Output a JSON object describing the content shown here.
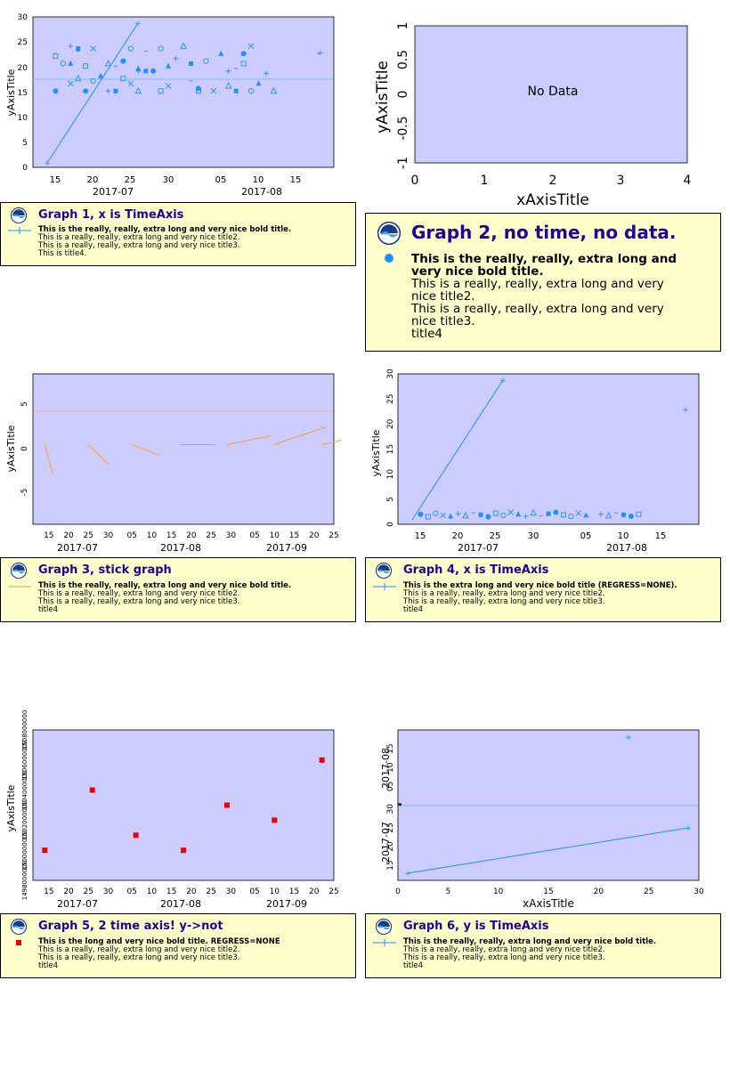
{
  "colors": {
    "plot_bg": "#ccccff",
    "legend_bg": "#ffffcc",
    "series_blue": "#1e90ff",
    "stick_orange": "#ff9933",
    "red": "#ee0000",
    "title_color": "#22009b"
  },
  "graphs": [
    {
      "title": "Graph 1, x is TimeAxis",
      "lines": [
        "This is the really, really, extra long and very nice bold title.",
        "This is a really, really, extra long and very nice title2.",
        "This is a really, really, extra long and very nice title3.",
        "This is title4."
      ],
      "y_axis_title": "yAxisTitle",
      "x_day_ticks": [
        "15",
        "20",
        "25",
        "30",
        "05",
        "10",
        "15"
      ],
      "x_month_labels": [
        "2017-07",
        "2017-08"
      ],
      "y_ticks": [
        "0",
        "5",
        "10",
        "15",
        "20",
        "25",
        "30"
      ]
    },
    {
      "title": "Graph 2, no time, no data.",
      "lines": [
        "This is the really, really, extra long and very nice bold title.",
        "This is a really, really, extra long and very nice title2.",
        "This is a really, really, extra long and very nice title3.",
        "title4"
      ],
      "no_data": "No Data",
      "x_axis_title": "xAxisTitle",
      "y_axis_title": "yAxisTitle",
      "x_ticks": [
        "0",
        "1",
        "2",
        "3",
        "4"
      ],
      "y_ticks": [
        "-1",
        "-0.5",
        "0",
        "0.5",
        "1"
      ]
    },
    {
      "title": "Graph 3, stick graph",
      "lines": [
        "This is the really, really, extra long and very nice bold title.",
        "This is a really, really, extra long and very nice title2.",
        "This is a really, really, extra long and very nice title3.",
        "title4"
      ],
      "y_axis_title": "yAxisTitle",
      "x_day_ticks": [
        "15",
        "20",
        "25",
        "30",
        "05",
        "10",
        "15",
        "20",
        "25",
        "30",
        "05",
        "10",
        "15",
        "20",
        "25"
      ],
      "x_month_labels": [
        "2017-07",
        "2017-08",
        "2017-09"
      ],
      "y_ticks": [
        "-5",
        "0",
        "5"
      ]
    },
    {
      "title": "Graph 4, x is TimeAxis",
      "lines": [
        "This is the  extra long and very nice bold title (REGRESS=NONE).",
        "This is a really, really, extra long and very nice title2.",
        "This is a really, really, extra long and very nice title3.",
        "title4"
      ],
      "y_axis_title": "yAxisTitle",
      "x_day_ticks": [
        "15",
        "20",
        "25",
        "30",
        "05",
        "10",
        "15"
      ],
      "x_month_labels": [
        "2017-07",
        "2017-08"
      ],
      "y_ticks": [
        "0",
        "5",
        "10",
        "15",
        "20",
        "25",
        "30"
      ]
    },
    {
      "title": "Graph 5, 2 time axis! y->not",
      "lines": [
        "This is the long and very nice bold title.  REGRESS=NONE",
        "This is a really, really, extra long and very nice title2.",
        "This is a really, really, extra long and very nice title3.",
        "title4"
      ],
      "y_axis_title": "yAxisTitle",
      "x_day_ticks": [
        "15",
        "20",
        "25",
        "30",
        "05",
        "10",
        "15",
        "20",
        "25",
        "30",
        "05",
        "10",
        "15",
        "20",
        "25"
      ],
      "x_month_labels": [
        "2017-07",
        "2017-08",
        "2017-09"
      ],
      "y_ticks": [
        "1498000000",
        "1500000000",
        "1502000000",
        "1504000000",
        "1506000000",
        "1508000000"
      ]
    },
    {
      "title": "Graph 6, y is TimeAxis",
      "lines": [
        "This is the really, really, extra long and very nice bold title.",
        "This is a really, really, extra long and very nice title2.",
        "This is a really, really, extra long and very nice title3.",
        "title4"
      ],
      "x_axis_title": "xAxisTitle",
      "x_ticks": [
        "0",
        "5",
        "10",
        "15",
        "20",
        "25",
        "30"
      ],
      "y_day_ticks": [
        "15",
        "20",
        "25",
        "30",
        "05",
        "10",
        "15"
      ],
      "y_month_labels": [
        "2017-07",
        "2017-08"
      ]
    }
  ],
  "chart_data": [
    {
      "type": "scatter",
      "title": "Graph 1, x is TimeAxis",
      "ylabel": "yAxisTitle",
      "xlabel": "",
      "xlim": [
        "2017-07-11",
        "2017-08-20"
      ],
      "ylim": [
        0,
        30
      ],
      "line": {
        "x": [
          "2017-07-14",
          "2017-07-26"
        ],
        "y": [
          1,
          29
        ]
      },
      "mean_line": 17.8,
      "scatter_x": [
        "2017-07-14",
        "2017-07-14",
        "2017-07-15",
        "2017-07-16",
        "2017-07-16",
        "2017-07-16",
        "2017-07-17",
        "2017-07-17",
        "2017-07-17",
        "2017-07-18",
        "2017-07-18",
        "2017-07-19",
        "2017-07-19",
        "2017-07-20",
        "2017-07-21",
        "2017-07-21",
        "2017-07-22",
        "2017-07-22",
        "2017-07-23",
        "2017-07-23",
        "2017-07-24",
        "2017-07-24",
        "2017-07-25",
        "2017-07-25",
        "2017-07-25",
        "2017-07-26",
        "2017-07-26",
        "2017-07-27",
        "2017-07-28",
        "2017-07-28",
        "2017-07-29",
        "2017-07-29",
        "2017-07-30",
        "2017-07-31",
        "2017-08-01",
        "2017-08-01",
        "2017-08-02",
        "2017-08-02",
        "2017-08-03",
        "2017-08-04",
        "2017-08-05",
        "2017-08-06",
        "2017-08-06",
        "2017-08-07",
        "2017-08-07",
        "2017-08-08",
        "2017-08-08",
        "2017-08-09",
        "2017-08-09",
        "2017-08-10",
        "2017-08-11",
        "2017-08-12",
        "2017-08-18"
      ],
      "scatter_y": [
        15.5,
        22.5,
        21,
        17,
        21,
        24.5,
        18,
        23.5,
        24,
        15.5,
        20.5,
        17.5,
        24,
        18.5,
        15.5,
        21,
        20.5,
        15.5,
        21.5,
        18,
        24,
        17,
        20,
        19.5,
        15.5,
        23.5,
        19.5,
        19.5,
        15.5,
        24,
        16.5,
        20.5,
        22,
        24.5,
        17.5,
        21,
        16,
        15.5,
        21.5,
        15.5,
        23,
        19.5,
        16.5,
        20,
        15.5,
        23,
        21,
        15.5,
        24.5,
        17,
        19,
        15.5,
        23
      ]
    },
    {
      "type": "scatter",
      "title": "Graph 2, no time, no data.",
      "xlabel": "xAxisTitle",
      "ylabel": "yAxisTitle",
      "xlim": [
        0,
        4
      ],
      "ylim": [
        -1,
        1
      ],
      "values": []
    },
    {
      "type": "line",
      "title": "Graph 3, stick graph",
      "ylabel": "yAxisTitle",
      "xlabel": "",
      "xlim": [
        "2017-07-11",
        "2017-09-25"
      ],
      "ylim": [
        -9,
        8
      ],
      "mean_line": 4.2,
      "sticks": [
        {
          "x": "2017-07-14",
          "dx_days": 2,
          "y0": 0,
          "y1": -3.3
        },
        {
          "x": "2017-07-25",
          "dx_days": 5,
          "y0": 0,
          "y1": -2.2
        },
        {
          "x": "2017-08-05",
          "dx_days": 7,
          "y0": 0,
          "y1": -1.2
        },
        {
          "x": "2017-08-17",
          "dx_days": 9,
          "y0": 0,
          "y1": 0
        },
        {
          "x": "2017-08-29",
          "dx_days": 11,
          "y0": 0,
          "y1": 1
        },
        {
          "x": "2017-09-10",
          "dx_days": 13,
          "y0": 0,
          "y1": 2
        },
        {
          "x": "2017-09-22",
          "dx_days": 5,
          "y0": 0,
          "y1": 0.5
        }
      ]
    },
    {
      "type": "scatter",
      "title": "Graph 4, x is TimeAxis",
      "ylabel": "yAxisTitle",
      "xlabel": "",
      "xlim": [
        "2017-07-11",
        "2017-08-20"
      ],
      "ylim": [
        0,
        30
      ],
      "line": {
        "x": [
          "2017-07-14",
          "2017-07-26"
        ],
        "y": [
          1,
          29
        ]
      },
      "outlier": {
        "x": "2017-08-18",
        "y": 23
      },
      "scatter_x": [
        "2017-07-14",
        "2017-07-15",
        "2017-07-16",
        "2017-07-17",
        "2017-07-18",
        "2017-07-19",
        "2017-07-20",
        "2017-07-21",
        "2017-07-22",
        "2017-07-23",
        "2017-07-24",
        "2017-07-25",
        "2017-07-26",
        "2017-07-27",
        "2017-07-28",
        "2017-07-29",
        "2017-07-30",
        "2017-07-31",
        "2017-08-01",
        "2017-08-02",
        "2017-08-03",
        "2017-08-04",
        "2017-08-05",
        "2017-08-07",
        "2017-08-08",
        "2017-08-09",
        "2017-08-10",
        "2017-08-11",
        "2017-08-12"
      ],
      "scatter_y": [
        2,
        1.5,
        2.2,
        1.8,
        1.6,
        2.1,
        1.7,
        2.3,
        1.9,
        1.5,
        2.2,
        1.8,
        2.4,
        2,
        1.6,
        2.3,
        1.7,
        2.1,
        2.4,
        1.9,
        1.6,
        2.2,
        1.8,
        2,
        1.7,
        2.3,
        1.9,
        1.6,
        2
      ]
    },
    {
      "type": "scatter",
      "title": "Graph 5, 2 time axis! y->not",
      "ylabel": "yAxisTitle",
      "xlabel": "",
      "xlim": [
        "2017-07-11",
        "2017-09-25"
      ],
      "ylim": [
        1498000000,
        1508000000
      ],
      "x": [
        "2017-07-14",
        "2017-07-26",
        "2017-08-06",
        "2017-08-18",
        "2017-08-29",
        "2017-09-10",
        "2017-09-22"
      ],
      "y": [
        1500000000,
        1504000000,
        1501000000,
        1500000000,
        1503000000,
        1502000000,
        1506000000
      ]
    },
    {
      "type": "line",
      "title": "Graph 6, y is TimeAxis",
      "xlabel": "xAxisTitle",
      "ylabel": "",
      "xlim": [
        0,
        30
      ],
      "ylim": [
        "2017-07-11",
        "2017-08-20"
      ],
      "x": [
        1,
        29
      ],
      "y": [
        "2017-07-14",
        "2017-07-26"
      ],
      "outlier": {
        "x": 23,
        "y": "2017-08-18"
      },
      "mean_line": "2017-07-31"
    }
  ]
}
